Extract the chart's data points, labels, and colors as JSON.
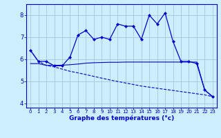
{
  "xlabel": "Graphe des températures (°c)",
  "background_color": "#cceeff",
  "grid_color": "#aaccdd",
  "line_color": "#0000cc",
  "x_hours": [
    0,
    1,
    2,
    3,
    4,
    5,
    6,
    7,
    8,
    9,
    10,
    11,
    12,
    13,
    14,
    15,
    16,
    17,
    18,
    19,
    20,
    21,
    22,
    23
  ],
  "temp_line": [
    6.4,
    5.9,
    5.9,
    5.7,
    5.7,
    6.1,
    7.1,
    7.3,
    6.9,
    7.0,
    6.9,
    7.6,
    7.5,
    7.5,
    6.9,
    8.0,
    7.6,
    8.1,
    6.8,
    5.9,
    5.9,
    5.8,
    4.6,
    4.3
  ],
  "flat_line": [
    5.8,
    5.8,
    5.72,
    5.72,
    5.73,
    5.75,
    5.78,
    5.82,
    5.84,
    5.85,
    5.86,
    5.86,
    5.87,
    5.87,
    5.87,
    5.87,
    5.87,
    5.87,
    5.87,
    5.87,
    5.87,
    5.87,
    4.6,
    4.3
  ],
  "diag_line": [
    6.4,
    5.9,
    5.72,
    5.65,
    5.55,
    5.45,
    5.38,
    5.3,
    5.22,
    5.14,
    5.06,
    4.99,
    4.92,
    4.85,
    4.78,
    4.73,
    4.68,
    4.63,
    4.58,
    4.53,
    4.48,
    4.43,
    4.38,
    4.3
  ],
  "ylim": [
    3.8,
    8.5
  ],
  "xlim": [
    -0.5,
    23.5
  ],
  "yticks": [
    4,
    5,
    6,
    7,
    8
  ],
  "xticks": [
    0,
    1,
    2,
    3,
    4,
    5,
    6,
    7,
    8,
    9,
    10,
    11,
    12,
    13,
    14,
    15,
    16,
    17,
    18,
    19,
    20,
    21,
    22,
    23
  ]
}
